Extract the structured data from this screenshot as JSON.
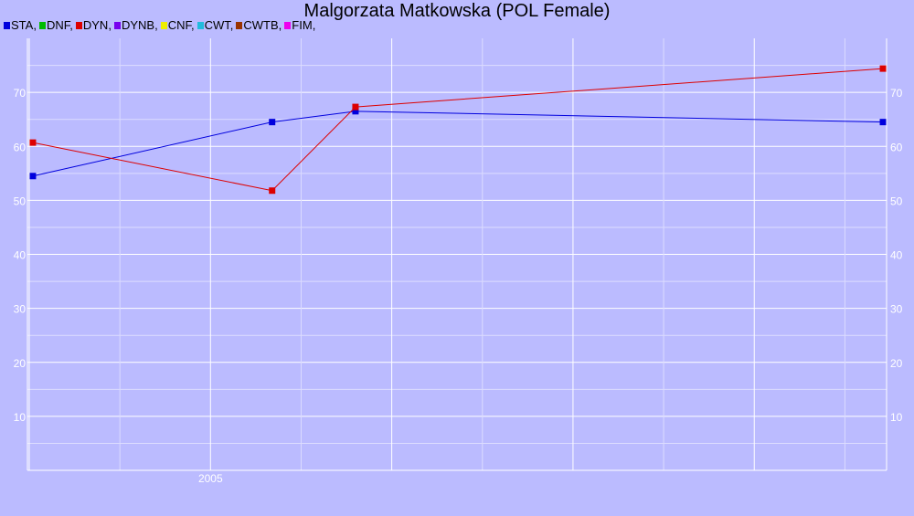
{
  "chart_data": {
    "type": "line",
    "title": "Malgorzata Matkowska (POL Female)",
    "legend": [
      {
        "name": "STA",
        "color": "#0000dd"
      },
      {
        "name": "DNF",
        "color": "#00bb00"
      },
      {
        "name": "DYN",
        "color": "#dd0000"
      },
      {
        "name": "DYNB",
        "color": "#7700ee"
      },
      {
        "name": "CNF",
        "color": "#eeee00"
      },
      {
        "name": "CWT",
        "color": "#22bbdd"
      },
      {
        "name": "CWTB",
        "color": "#993300"
      },
      {
        "name": "FIM",
        "color": "#ee00ee"
      }
    ],
    "legend_placement": "top-left",
    "x_ticks": [
      {
        "label": "2005",
        "value": 2005.0
      }
    ],
    "xlim": [
      2003.99,
      2008.73
    ],
    "ylim": [
      0,
      80
    ],
    "y_ticks": [
      10,
      20,
      30,
      40,
      50,
      60,
      70
    ],
    "y_axis_both_sides": true,
    "grid": true,
    "series": [
      {
        "name": "STA",
        "color": "#0000dd",
        "x": [
          2004.02,
          2005.34,
          2005.8,
          2008.71
        ],
        "y": [
          54.5,
          64.5,
          66.5,
          64.5
        ]
      },
      {
        "name": "DYN",
        "color": "#dd0000",
        "x": [
          2004.02,
          2005.34,
          2005.8,
          2008.71
        ],
        "y": [
          60.7,
          51.8,
          67.3,
          74.4
        ]
      }
    ]
  }
}
